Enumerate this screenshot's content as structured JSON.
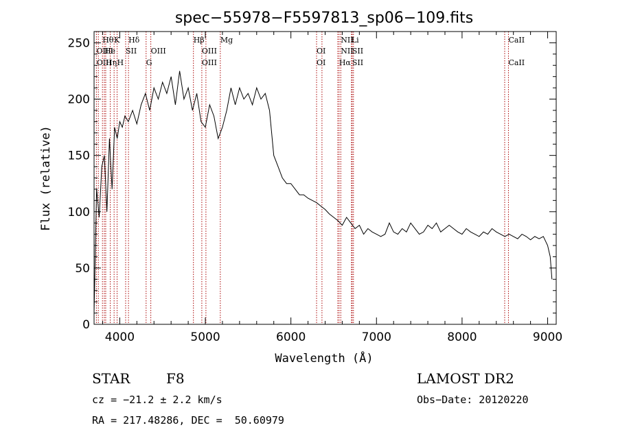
{
  "chart_data": {
    "type": "line",
    "title": "spec−55978−F5597813_sp06−109.fits",
    "xlabel": "Wavelength (Å)",
    "ylabel": "Flux (relative)",
    "xlim": [
      3700,
      9100
    ],
    "ylim": [
      0,
      260
    ],
    "xticks": [
      4000,
      5000,
      6000,
      7000,
      8000,
      9000
    ],
    "yticks": [
      0,
      50,
      100,
      150,
      200,
      250
    ],
    "line_color": "#000000",
    "marker_color": "#aa0000",
    "series": [
      {
        "x": [
          3700,
          3730,
          3760,
          3790,
          3820,
          3850,
          3880,
          3910,
          3940,
          3970,
          4000,
          4030,
          4060,
          4100,
          4150,
          4200,
          4250,
          4300,
          4350,
          4400,
          4450,
          4500,
          4550,
          4600,
          4650,
          4700,
          4750,
          4800,
          4850,
          4900,
          4950,
          5000,
          5050,
          5100,
          5150,
          5200,
          5250,
          5300,
          5350,
          5400,
          5450,
          5500,
          5550,
          5600,
          5650,
          5700,
          5750,
          5800,
          5850,
          5900,
          5950,
          6000,
          6050,
          6100,
          6150,
          6200,
          6250,
          6300,
          6350,
          6400,
          6450,
          6500,
          6550,
          6600,
          6650,
          6700,
          6750,
          6800,
          6850,
          6900,
          6950,
          7000,
          7050,
          7100,
          7150,
          7200,
          7250,
          7300,
          7350,
          7400,
          7450,
          7500,
          7550,
          7600,
          7650,
          7700,
          7750,
          7800,
          7850,
          7900,
          7950,
          8000,
          8050,
          8100,
          8150,
          8200,
          8250,
          8300,
          8350,
          8400,
          8450,
          8500,
          8550,
          8600,
          8650,
          8700,
          8750,
          8800,
          8850,
          8900,
          8950,
          9000,
          9030,
          9050
        ],
        "y": [
          10,
          120,
          95,
          140,
          150,
          100,
          165,
          120,
          175,
          165,
          180,
          175,
          185,
          180,
          190,
          178,
          195,
          205,
          190,
          210,
          200,
          215,
          205,
          220,
          195,
          225,
          200,
          210,
          190,
          205,
          180,
          175,
          195,
          185,
          165,
          175,
          190,
          210,
          195,
          210,
          200,
          205,
          195,
          210,
          200,
          205,
          190,
          150,
          140,
          130,
          125,
          125,
          120,
          115,
          115,
          112,
          110,
          108,
          105,
          102,
          98,
          95,
          92,
          88,
          95,
          90,
          85,
          88,
          80,
          85,
          82,
          80,
          78,
          80,
          90,
          82,
          80,
          85,
          82,
          90,
          85,
          80,
          82,
          88,
          85,
          90,
          82,
          85,
          88,
          85,
          82,
          80,
          85,
          82,
          80,
          78,
          82,
          80,
          85,
          82,
          80,
          78,
          80,
          78,
          76,
          80,
          78,
          75,
          78,
          76,
          78,
          70,
          60,
          40
        ]
      }
    ],
    "lines": [
      {
        "label": "Hθ",
        "x": 3798,
        "row": 0
      },
      {
        "label": "OII",
        "x": 3727,
        "row": 1
      },
      {
        "label": "OIII",
        "x": 3730,
        "row": 2
      },
      {
        "label": "He",
        "x": 3820,
        "row": 1
      },
      {
        "label": "Hη",
        "x": 3836,
        "row": 2
      },
      {
        "label": "K",
        "x": 3934,
        "row": 0
      },
      {
        "label": "H",
        "x": 3969,
        "row": 2
      },
      {
        "label": "I",
        "x": 3889,
        "row": 1
      },
      {
        "label": "SII",
        "x": 4069,
        "row": 1
      },
      {
        "label": "Hδ",
        "x": 4102,
        "row": 0
      },
      {
        "label": "OIII",
        "x": 4363,
        "row": 1
      },
      {
        "label": "G",
        "x": 4308,
        "row": 2
      },
      {
        "label": "Hβ",
        "x": 4861,
        "row": 0
      },
      {
        "label": "OIII",
        "x": 4959,
        "row": 1
      },
      {
        "label": "OIII",
        "x": 4959,
        "row": 2
      },
      {
        "label": "Mg",
        "x": 5175,
        "row": 0
      },
      {
        "label": "OI",
        "x": 6300,
        "row": 1
      },
      {
        "label": "OI",
        "x": 6300,
        "row": 2
      },
      {
        "label": "NII",
        "x": 6583,
        "row": 0
      },
      {
        "label": "NII",
        "x": 6583,
        "row": 1
      },
      {
        "label": "Hα",
        "x": 6563,
        "row": 2
      },
      {
        "label": "Li",
        "x": 6708,
        "row": 0
      },
      {
        "label": "SII",
        "x": 6716,
        "row": 1
      },
      {
        "label": "SII",
        "x": 6716,
        "row": 2
      },
      {
        "label": "CaII",
        "x": 8542,
        "row": 0
      },
      {
        "label": "CaII",
        "x": 8542,
        "row": 2
      }
    ],
    "marker_x": [
      3727,
      3750,
      3798,
      3820,
      3836,
      3889,
      3934,
      3969,
      4069,
      4102,
      4308,
      4363,
      4861,
      4959,
      5007,
      5175,
      6300,
      6363,
      6548,
      6563,
      6583,
      6708,
      6716,
      6731,
      8498,
      8542
    ]
  },
  "info": {
    "class": "STAR",
    "subclass": "F8",
    "survey": "LAMOST DR2",
    "cz": "cz = −21.2 ± 2.2 km/s",
    "obs_date": "Obs−Date: 20120220",
    "coords": "RA = 217.48286, DEC =  50.60979"
  }
}
